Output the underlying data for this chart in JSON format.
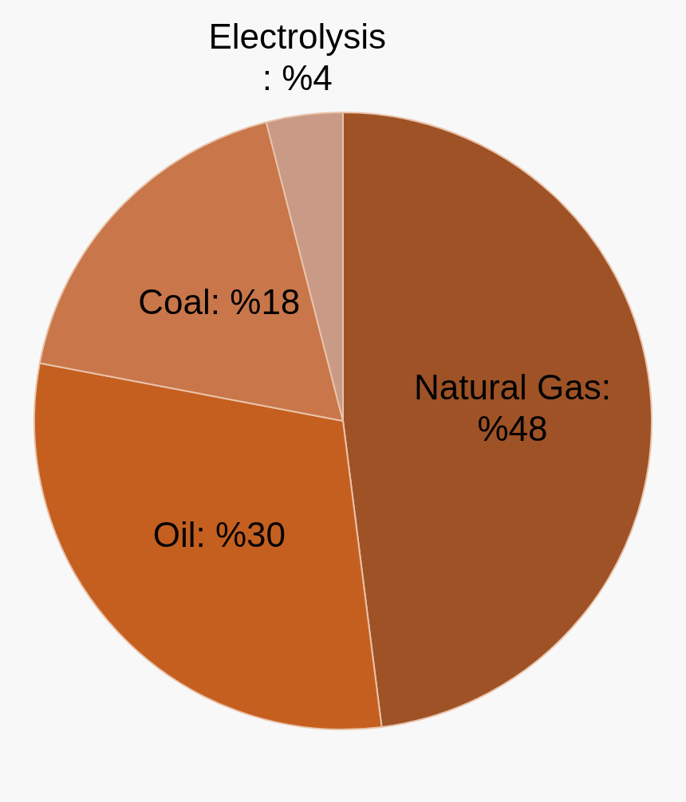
{
  "chart_data": {
    "type": "pie",
    "categories": [
      "Natural Gas",
      "Oil",
      "Coal",
      "Electrolysis"
    ],
    "values": [
      48,
      30,
      18,
      4
    ],
    "value_labels": [
      ": %48",
      ": %30",
      ": %18",
      ": %4"
    ],
    "colors": [
      "#9e5226",
      "#c55f20",
      "#c8764a",
      "#c99a85"
    ],
    "legend": false
  }
}
